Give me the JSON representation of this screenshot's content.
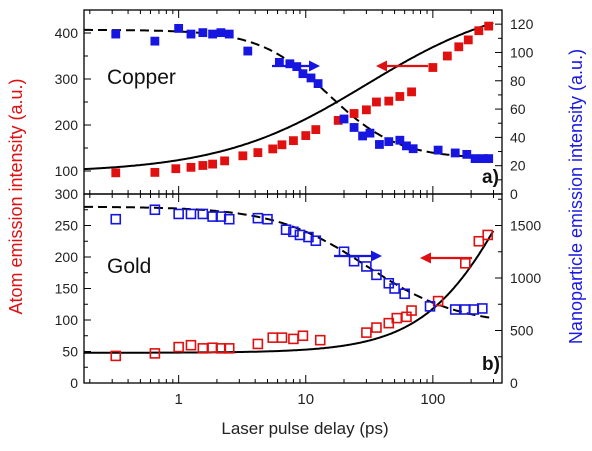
{
  "figure": {
    "xlabel": "Laser pulse delay (ps)",
    "ylabel_left": "Atom emission intensity (a.u.)",
    "ylabel_right": "Nanoparticle emission intensity (a.u.)",
    "left_label_color": "#dd1111",
    "right_label_color": "#1a1ae0",
    "x_ticks": [
      "1",
      "10",
      "100"
    ]
  },
  "chart_data": [
    {
      "type": "scatter",
      "panel": "a)",
      "material": "Copper",
      "x_scale": "log",
      "xlim": [
        0.18,
        350
      ],
      "ylim_left": [
        50,
        450
      ],
      "ylim_right": [
        0,
        130
      ],
      "yticks_left": [
        100,
        200,
        300,
        400
      ],
      "yticks_right": [
        0,
        20,
        40,
        60,
        80,
        100,
        120
      ],
      "marker": "filled-square",
      "series": [
        {
          "axis": "left",
          "color": "#e01010",
          "x": [
            0.32,
            0.65,
            0.95,
            1.25,
            1.55,
            1.85,
            2.3,
            3.2,
            4.2,
            5.5,
            6.5,
            8,
            10,
            12,
            18,
            24,
            30,
            36,
            45,
            55,
            68,
            100,
            130,
            160,
            190,
            230,
            275
          ],
          "y": [
            96,
            97,
            105,
            108,
            112,
            115,
            122,
            133,
            140,
            148,
            157,
            166,
            177,
            190,
            210,
            225,
            233,
            250,
            252,
            262,
            272,
            325,
            350,
            370,
            385,
            405,
            415
          ]
        },
        {
          "axis": "right",
          "color": "#1616e0",
          "x": [
            0.32,
            0.65,
            1.0,
            1.25,
            1.55,
            1.85,
            2.15,
            2.5,
            3.5,
            6.2,
            7.5,
            8.5,
            9.5,
            11.0,
            12.5,
            20,
            24,
            28,
            32,
            38,
            45,
            55,
            62,
            70,
            110,
            150,
            185,
            215,
            250,
            275
          ],
          "y": [
            113,
            108,
            117,
            113,
            114,
            113,
            114,
            113,
            101,
            93,
            92,
            90,
            85,
            82,
            78,
            53,
            47,
            41,
            43,
            35,
            37,
            38,
            34,
            32,
            31,
            29,
            28,
            25,
            25,
            25
          ]
        }
      ],
      "annotation": "Copper"
    },
    {
      "type": "scatter",
      "panel": "b)",
      "material": "Gold",
      "x_scale": "log",
      "xlim": [
        0.18,
        350
      ],
      "ylim_left": [
        0,
        300
      ],
      "ylim_right": [
        0,
        1800
      ],
      "yticks_left": [
        0,
        50,
        100,
        150,
        200,
        250,
        300
      ],
      "yticks_right": [
        0,
        500,
        1000,
        1500
      ],
      "marker": "open-square",
      "series": [
        {
          "axis": "left",
          "color": "#e01010",
          "x": [
            0.32,
            0.65,
            1.0,
            1.25,
            1.55,
            1.85,
            2.15,
            2.5,
            4.2,
            5.5,
            6.5,
            8,
            9.5,
            13,
            30,
            36,
            45,
            52,
            62,
            68,
            110,
            180,
            230,
            270
          ],
          "y": [
            43,
            47,
            57,
            60,
            55,
            56,
            55,
            55,
            62,
            72,
            72,
            70,
            75,
            68,
            80,
            88,
            95,
            103,
            105,
            115,
            130,
            190,
            225,
            235
          ]
        },
        {
          "axis": "right",
          "color": "#1616e0",
          "x": [
            0.32,
            0.65,
            1.0,
            1.25,
            1.55,
            1.85,
            2.15,
            2.5,
            4.2,
            5.0,
            7.0,
            8.0,
            9.0,
            10.5,
            12.0,
            20,
            24,
            30,
            36,
            45,
            50,
            60,
            95,
            150,
            180,
            210,
            245
          ],
          "y": [
            1560,
            1650,
            1610,
            1610,
            1610,
            1585,
            1585,
            1560,
            1570,
            1560,
            1460,
            1440,
            1410,
            1390,
            1355,
            1250,
            1160,
            1110,
            1030,
            950,
            900,
            850,
            730,
            700,
            700,
            700,
            710
          ]
        }
      ],
      "annotation": "Gold"
    }
  ]
}
